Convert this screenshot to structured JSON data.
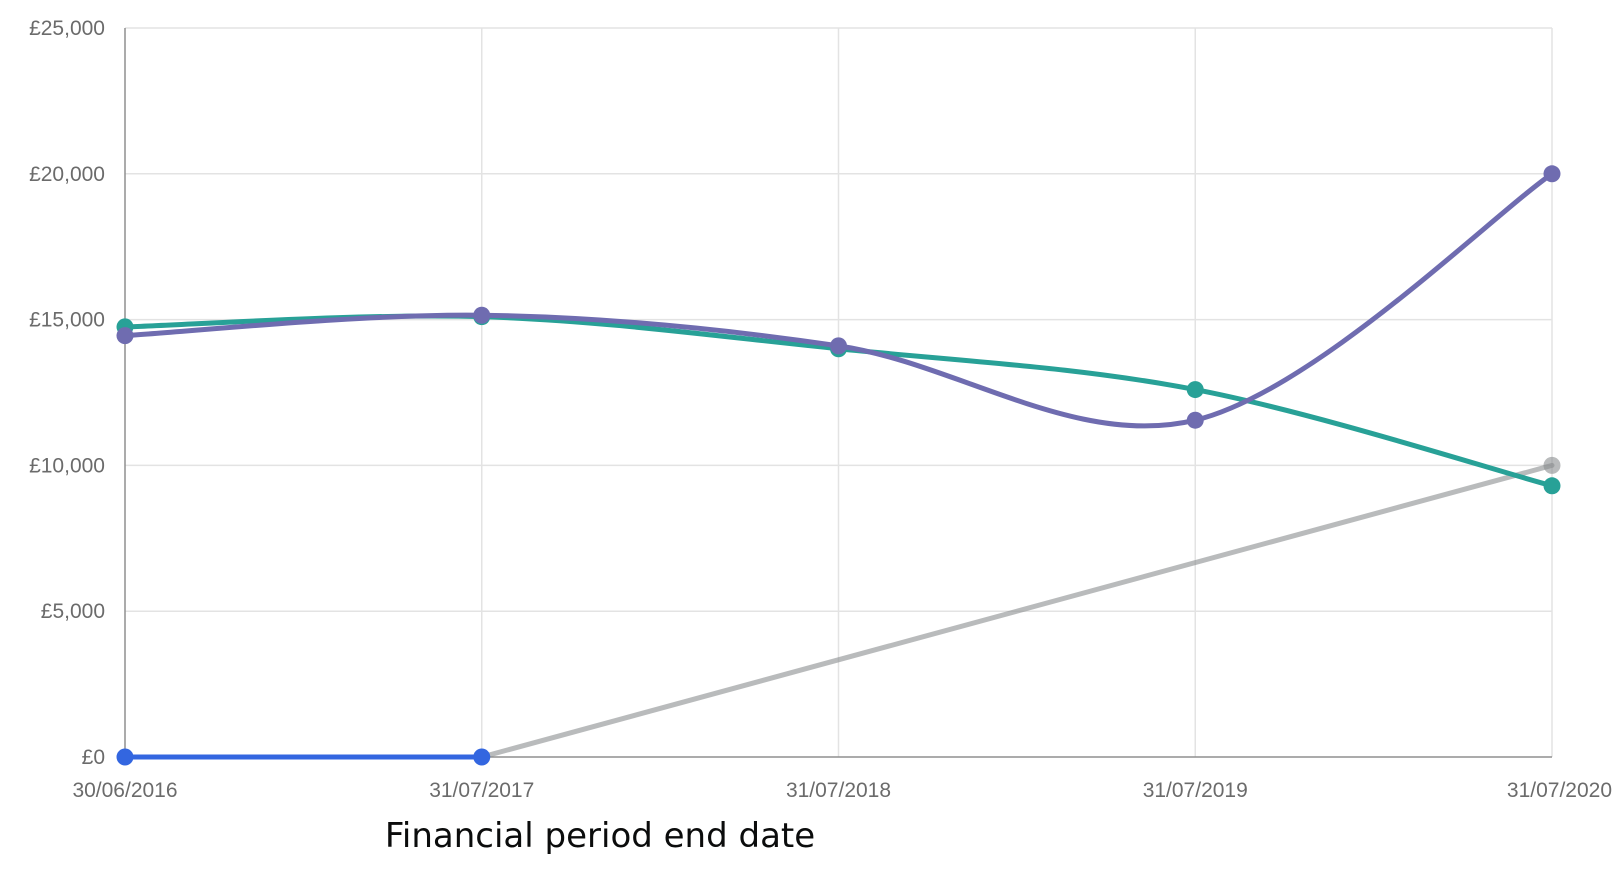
{
  "chart_data": {
    "type": "line",
    "title": "",
    "xlabel": "Financial period end date",
    "ylabel": "",
    "categories": [
      "30/06/2016",
      "31/07/2017",
      "31/07/2018",
      "31/07/2019",
      "31/07/2020"
    ],
    "yticks": [
      "£0",
      "£5,000",
      "£10,000",
      "£15,000",
      "£20,000",
      "£25,000"
    ],
    "ylim": [
      0,
      25000
    ],
    "grid": true,
    "legend": "none",
    "series": [
      {
        "color": "#8a8d8f",
        "smooth": false,
        "values": [
          null,
          0,
          null,
          null,
          10000
        ],
        "markers": [
          false,
          false,
          false,
          false,
          true
        ]
      },
      {
        "color": "#3366e0",
        "smooth": false,
        "values": [
          0,
          0,
          null,
          null,
          null
        ],
        "markers": [
          true,
          true,
          false,
          false,
          false
        ]
      },
      {
        "color": "#28a197",
        "smooth": true,
        "values": [
          14750,
          15100,
          14000,
          12600,
          9300
        ],
        "markers": [
          true,
          true,
          true,
          true,
          true
        ]
      },
      {
        "color": "#6f6cb0",
        "smooth": true,
        "values": [
          14450,
          15150,
          14100,
          11550,
          20000
        ],
        "markers": [
          true,
          true,
          true,
          true,
          true
        ]
      }
    ]
  }
}
